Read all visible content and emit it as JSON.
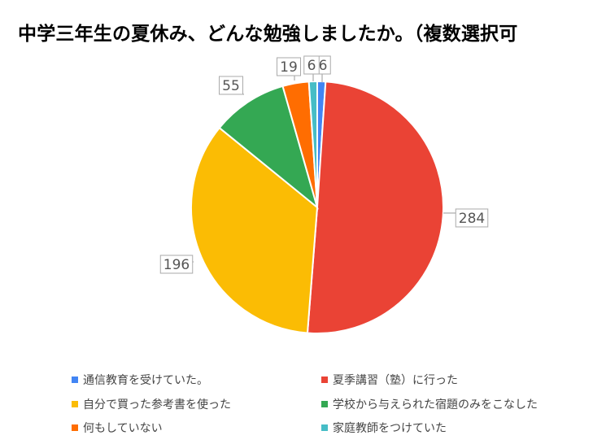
{
  "chart_data": {
    "type": "pie",
    "title": "中学三年生の夏休み、どんな勉強しましたか。（複数選択可",
    "slices": [
      {
        "label": "通信教育を受けていた。",
        "value": 6,
        "color": "#4285f4"
      },
      {
        "label": "夏季講習（塾）に行った",
        "value": 284,
        "color": "#ea4335"
      },
      {
        "label": "自分で買った参考書を使った",
        "value": 196,
        "color": "#fbbc04"
      },
      {
        "label": "学校から与えられた宿題のみをこなした",
        "value": 55,
        "color": "#34a853"
      },
      {
        "label": "何もしていない",
        "value": 19,
        "color": "#ff6d01"
      },
      {
        "label": "家庭教師をつけていた",
        "value": 6,
        "color": "#46bdc6"
      }
    ],
    "legend_position": "bottom"
  }
}
